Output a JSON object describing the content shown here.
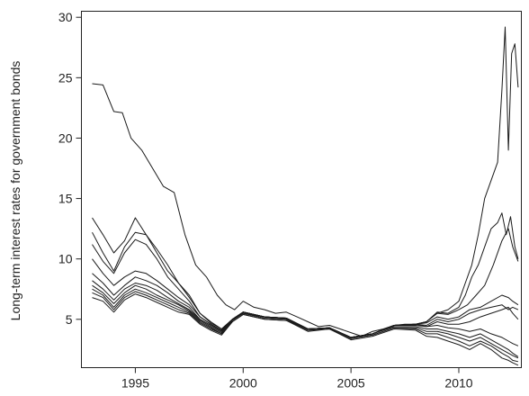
{
  "chart_data": {
    "type": "line",
    "title": "",
    "xlabel": "",
    "ylabel": "Long-term interest rates for government bonds",
    "xlim": [
      1992.5,
      2012.9
    ],
    "ylim": [
      1,
      30.5
    ],
    "x_ticks": [
      1995,
      2000,
      2005,
      2010
    ],
    "x_tick_labels": [
      "1995",
      "2000",
      "2005",
      "2010"
    ],
    "y_ticks": [
      5,
      10,
      15,
      20,
      25,
      30
    ],
    "y_tick_labels": [
      "5",
      "10",
      "15",
      "20",
      "25",
      "30"
    ],
    "grid": false,
    "legend": "none",
    "line_color": "#1a1a1a",
    "series": [
      {
        "x": [
          1993.0,
          1993.5,
          1994.0,
          1994.4,
          1994.8,
          1995.3,
          1995.8,
          1996.3,
          1996.8,
          1997.3,
          1997.8,
          1998.3,
          1998.8,
          1999.2,
          1999.6,
          2000.0,
          2000.5,
          2001.0,
          2001.5,
          2002.0,
          2002.5,
          2003.0,
          2003.5,
          2004.0,
          2004.5,
          2005.0,
          2005.5,
          2006.0,
          2006.5,
          2007.0,
          2007.5,
          2008.0,
          2008.5,
          2009.0,
          2009.5,
          2010.0,
          2010.3,
          2010.6,
          2010.9,
          2011.2,
          2011.5,
          2011.8,
          2012.0,
          2012.15,
          2012.3,
          2012.45,
          2012.6,
          2012.75
        ],
        "y": [
          24.5,
          24.4,
          22.2,
          22.1,
          20.0,
          19.0,
          17.5,
          16.0,
          15.5,
          12.0,
          9.5,
          8.5,
          7.0,
          6.2,
          5.8,
          6.5,
          6.0,
          5.8,
          5.5,
          5.6,
          5.2,
          4.8,
          4.4,
          4.5,
          4.2,
          3.9,
          3.6,
          4.0,
          4.2,
          4.5,
          4.6,
          4.6,
          4.8,
          5.5,
          5.8,
          6.5,
          8.0,
          9.5,
          12.0,
          15.0,
          16.5,
          18.0,
          24.0,
          29.2,
          19.0,
          27.0,
          27.8,
          24.2
        ]
      },
      {
        "x": [
          1993.0,
          1993.5,
          1994.0,
          1994.5,
          1995.0,
          1995.5,
          1996.0,
          1996.5,
          1997.0,
          1997.5,
          1998.0,
          1998.5,
          1999.0,
          1999.5,
          2000.0,
          2001.0,
          2002.0,
          2003.0,
          2004.0,
          2005.0,
          2006.0,
          2007.0,
          2008.0,
          2008.5,
          2009.0,
          2009.5,
          2010.0,
          2010.3,
          2010.6,
          2010.9,
          2011.2,
          2011.5,
          2011.8,
          2012.0,
          2012.2,
          2012.4,
          2012.6,
          2012.75
        ],
        "y": [
          13.4,
          12.0,
          10.5,
          11.5,
          13.4,
          12.0,
          10.8,
          9.5,
          8.0,
          7.0,
          5.5,
          4.8,
          4.2,
          5.0,
          5.6,
          5.2,
          5.1,
          4.2,
          4.3,
          3.5,
          3.8,
          4.5,
          4.6,
          4.8,
          5.6,
          5.5,
          6.0,
          7.0,
          8.5,
          9.5,
          11.0,
          12.5,
          13.0,
          13.8,
          12.0,
          13.5,
          11.0,
          10.0
        ]
      },
      {
        "x": [
          1993.0,
          1993.5,
          1994.0,
          1994.5,
          1995.0,
          1995.5,
          1996.0,
          1996.5,
          1997.0,
          1997.5,
          1998.0,
          1998.5,
          1999.0,
          1999.5,
          2000.0,
          2001.0,
          2002.0,
          2003.0,
          2004.0,
          2005.0,
          2006.0,
          2007.0,
          2008.0,
          2008.5,
          2009.0,
          2009.5,
          2010.0,
          2010.4,
          2010.8,
          2011.2,
          2011.6,
          2012.0,
          2012.3,
          2012.5,
          2012.75
        ],
        "y": [
          12.2,
          10.5,
          9.0,
          11.0,
          12.2,
          12.0,
          10.5,
          9.0,
          8.0,
          6.8,
          5.5,
          4.7,
          4.2,
          5.0,
          5.6,
          5.2,
          5.1,
          4.2,
          4.3,
          3.5,
          3.8,
          4.5,
          4.6,
          4.8,
          5.5,
          5.4,
          5.8,
          6.2,
          7.0,
          7.8,
          9.5,
          11.5,
          12.5,
          11.0,
          9.8
        ]
      },
      {
        "x": [
          1993.0,
          1993.5,
          1994.0,
          1994.5,
          1995.0,
          1995.5,
          1996.0,
          1996.5,
          1997.0,
          1997.5,
          1998.0,
          1998.5,
          1999.0,
          1999.5,
          2000.0,
          2001.0,
          2002.0,
          2003.0,
          2004.0,
          2005.0,
          2006.0,
          2007.0,
          2008.0,
          2008.5,
          2009.0,
          2009.5,
          2010.0,
          2010.5,
          2011.0,
          2011.5,
          2012.0,
          2012.3,
          2012.5,
          2012.75
        ],
        "y": [
          11.2,
          9.8,
          8.8,
          10.5,
          11.6,
          11.2,
          10.0,
          8.5,
          7.5,
          6.5,
          5.2,
          4.6,
          4.1,
          5.0,
          5.6,
          5.2,
          5.1,
          4.2,
          4.3,
          3.5,
          3.8,
          4.5,
          4.6,
          4.7,
          5.2,
          5.0,
          5.2,
          5.8,
          6.0,
          6.5,
          7.0,
          6.8,
          6.5,
          6.2
        ]
      },
      {
        "x": [
          1993.0,
          1993.5,
          1994.0,
          1994.5,
          1995.0,
          1995.5,
          1996.0,
          1996.5,
          1997.0,
          1997.5,
          1998.0,
          1998.5,
          1999.0,
          1999.5,
          2000.0,
          2001.0,
          2002.0,
          2003.0,
          2004.0,
          2005.0,
          2006.0,
          2007.0,
          2008.0,
          2008.5,
          2009.0,
          2009.5,
          2010.0,
          2010.5,
          2011.0,
          2011.5,
          2012.0,
          2012.3,
          2012.5,
          2012.75
        ],
        "y": [
          10.0,
          8.8,
          7.8,
          8.5,
          9.0,
          8.8,
          8.2,
          7.5,
          6.8,
          6.2,
          5.2,
          4.6,
          4.1,
          5.0,
          5.6,
          5.2,
          5.1,
          4.2,
          4.3,
          3.5,
          3.8,
          4.5,
          4.6,
          4.5,
          5.0,
          4.8,
          5.0,
          5.5,
          5.8,
          6.0,
          6.2,
          5.8,
          6.0,
          5.8
        ]
      },
      {
        "x": [
          1993.0,
          1993.5,
          1994.0,
          1994.5,
          1995.0,
          1995.5,
          1996.0,
          1996.5,
          1997.0,
          1997.5,
          1998.0,
          1998.5,
          1999.0,
          1999.5,
          2000.0,
          2001.0,
          2002.0,
          2003.0,
          2004.0,
          2005.0,
          2006.0,
          2007.0,
          2008.0,
          2008.5,
          2009.0,
          2009.5,
          2010.0,
          2010.5,
          2011.0,
          2011.5,
          2012.0,
          2012.3,
          2012.5,
          2012.75
        ],
        "y": [
          8.8,
          8.0,
          7.0,
          7.8,
          8.5,
          8.2,
          7.8,
          7.2,
          6.5,
          6.0,
          5.0,
          4.5,
          4.0,
          5.0,
          5.6,
          5.2,
          5.1,
          4.2,
          4.3,
          3.5,
          3.8,
          4.5,
          4.6,
          4.4,
          4.8,
          4.6,
          4.6,
          4.8,
          5.2,
          5.5,
          5.8,
          6.0,
          5.5,
          5.0
        ]
      },
      {
        "x": [
          1993.0,
          1993.5,
          1994.0,
          1994.5,
          1995.0,
          1995.5,
          1996.0,
          1996.5,
          1997.0,
          1997.5,
          1998.0,
          1998.5,
          1999.0,
          1999.5,
          2000.0,
          2001.0,
          2002.0,
          2003.0,
          2004.0,
          2005.0,
          2006.0,
          2007.0,
          2008.0,
          2008.5,
          2009.0,
          2009.5,
          2010.0,
          2010.5,
          2011.0,
          2011.5,
          2012.0,
          2012.3,
          2012.5,
          2012.75
        ],
        "y": [
          8.2,
          7.5,
          6.6,
          7.5,
          8.0,
          7.8,
          7.4,
          6.8,
          6.3,
          5.8,
          5.0,
          4.5,
          4.0,
          5.0,
          5.6,
          5.2,
          5.1,
          4.2,
          4.3,
          3.5,
          3.8,
          4.5,
          4.5,
          4.4,
          4.5,
          4.3,
          4.2,
          4.0,
          4.2,
          3.8,
          3.5,
          3.2,
          3.0,
          2.8
        ]
      },
      {
        "x": [
          1993.0,
          1993.5,
          1994.0,
          1994.5,
          1995.0,
          1995.5,
          1996.0,
          1996.5,
          1997.0,
          1997.5,
          1998.0,
          1998.5,
          1999.0,
          1999.5,
          2000.0,
          2001.0,
          2002.0,
          2003.0,
          2004.0,
          2005.0,
          2006.0,
          2007.0,
          2008.0,
          2008.5,
          2009.0,
          2009.5,
          2010.0,
          2010.5,
          2011.0,
          2011.5,
          2012.0,
          2012.3,
          2012.5,
          2012.75
        ],
        "y": [
          7.8,
          7.2,
          6.3,
          7.2,
          7.8,
          7.5,
          7.0,
          6.6,
          6.2,
          5.7,
          4.9,
          4.4,
          3.9,
          5.0,
          5.5,
          5.2,
          5.0,
          4.2,
          4.3,
          3.5,
          3.8,
          4.4,
          4.4,
          4.2,
          4.2,
          4.0,
          3.8,
          3.5,
          3.8,
          3.3,
          2.8,
          2.5,
          2.2,
          1.9
        ]
      },
      {
        "x": [
          1993.0,
          1993.5,
          1994.0,
          1994.5,
          1995.0,
          1995.5,
          1996.0,
          1996.5,
          1997.0,
          1997.5,
          1998.0,
          1998.5,
          1999.0,
          1999.5,
          2000.0,
          2001.0,
          2002.0,
          2003.0,
          2004.0,
          2005.0,
          2006.0,
          2007.0,
          2008.0,
          2008.5,
          2009.0,
          2009.5,
          2010.0,
          2010.5,
          2011.0,
          2011.5,
          2012.0,
          2012.3,
          2012.5,
          2012.75
        ],
        "y": [
          7.5,
          7.0,
          6.0,
          7.0,
          7.5,
          7.2,
          6.8,
          6.4,
          6.0,
          5.6,
          4.8,
          4.3,
          3.8,
          4.9,
          5.5,
          5.1,
          5.0,
          4.1,
          4.2,
          3.4,
          3.7,
          4.3,
          4.3,
          4.0,
          4.0,
          3.8,
          3.5,
          3.2,
          3.5,
          3.0,
          2.5,
          2.2,
          2.0,
          1.8
        ]
      },
      {
        "x": [
          1993.0,
          1993.5,
          1994.0,
          1994.5,
          1995.0,
          1995.5,
          1996.0,
          1996.5,
          1997.0,
          1997.5,
          1998.0,
          1998.5,
          1999.0,
          1999.5,
          2000.0,
          2001.0,
          2002.0,
          2003.0,
          2004.0,
          2005.0,
          2006.0,
          2007.0,
          2008.0,
          2008.5,
          2009.0,
          2009.5,
          2010.0,
          2010.5,
          2011.0,
          2011.5,
          2012.0,
          2012.3,
          2012.5,
          2012.75
        ],
        "y": [
          7.2,
          6.8,
          5.8,
          6.8,
          7.3,
          7.0,
          6.6,
          6.2,
          5.8,
          5.5,
          4.7,
          4.2,
          3.8,
          4.8,
          5.4,
          5.0,
          4.9,
          4.1,
          4.2,
          3.4,
          3.7,
          4.3,
          4.2,
          3.8,
          3.8,
          3.5,
          3.2,
          2.8,
          3.2,
          2.8,
          2.2,
          1.9,
          1.6,
          1.5
        ]
      },
      {
        "x": [
          1993.0,
          1993.5,
          1994.0,
          1994.5,
          1995.0,
          1995.5,
          1996.0,
          1996.5,
          1997.0,
          1997.5,
          1998.0,
          1998.5,
          1999.0,
          1999.5,
          2000.0,
          2001.0,
          2002.0,
          2003.0,
          2004.0,
          2005.0,
          2006.0,
          2007.0,
          2008.0,
          2008.5,
          2009.0,
          2009.5,
          2010.0,
          2010.5,
          2011.0,
          2011.5,
          2012.0,
          2012.3,
          2012.5,
          2012.75
        ],
        "y": [
          6.8,
          6.5,
          5.6,
          6.6,
          7.1,
          6.8,
          6.4,
          6.0,
          5.6,
          5.4,
          4.6,
          4.1,
          3.7,
          4.8,
          5.4,
          5.0,
          4.9,
          4.0,
          4.2,
          3.3,
          3.6,
          4.2,
          4.1,
          3.6,
          3.5,
          3.2,
          2.9,
          2.5,
          3.0,
          2.5,
          1.8,
          1.6,
          1.4,
          1.2
        ]
      }
    ]
  }
}
